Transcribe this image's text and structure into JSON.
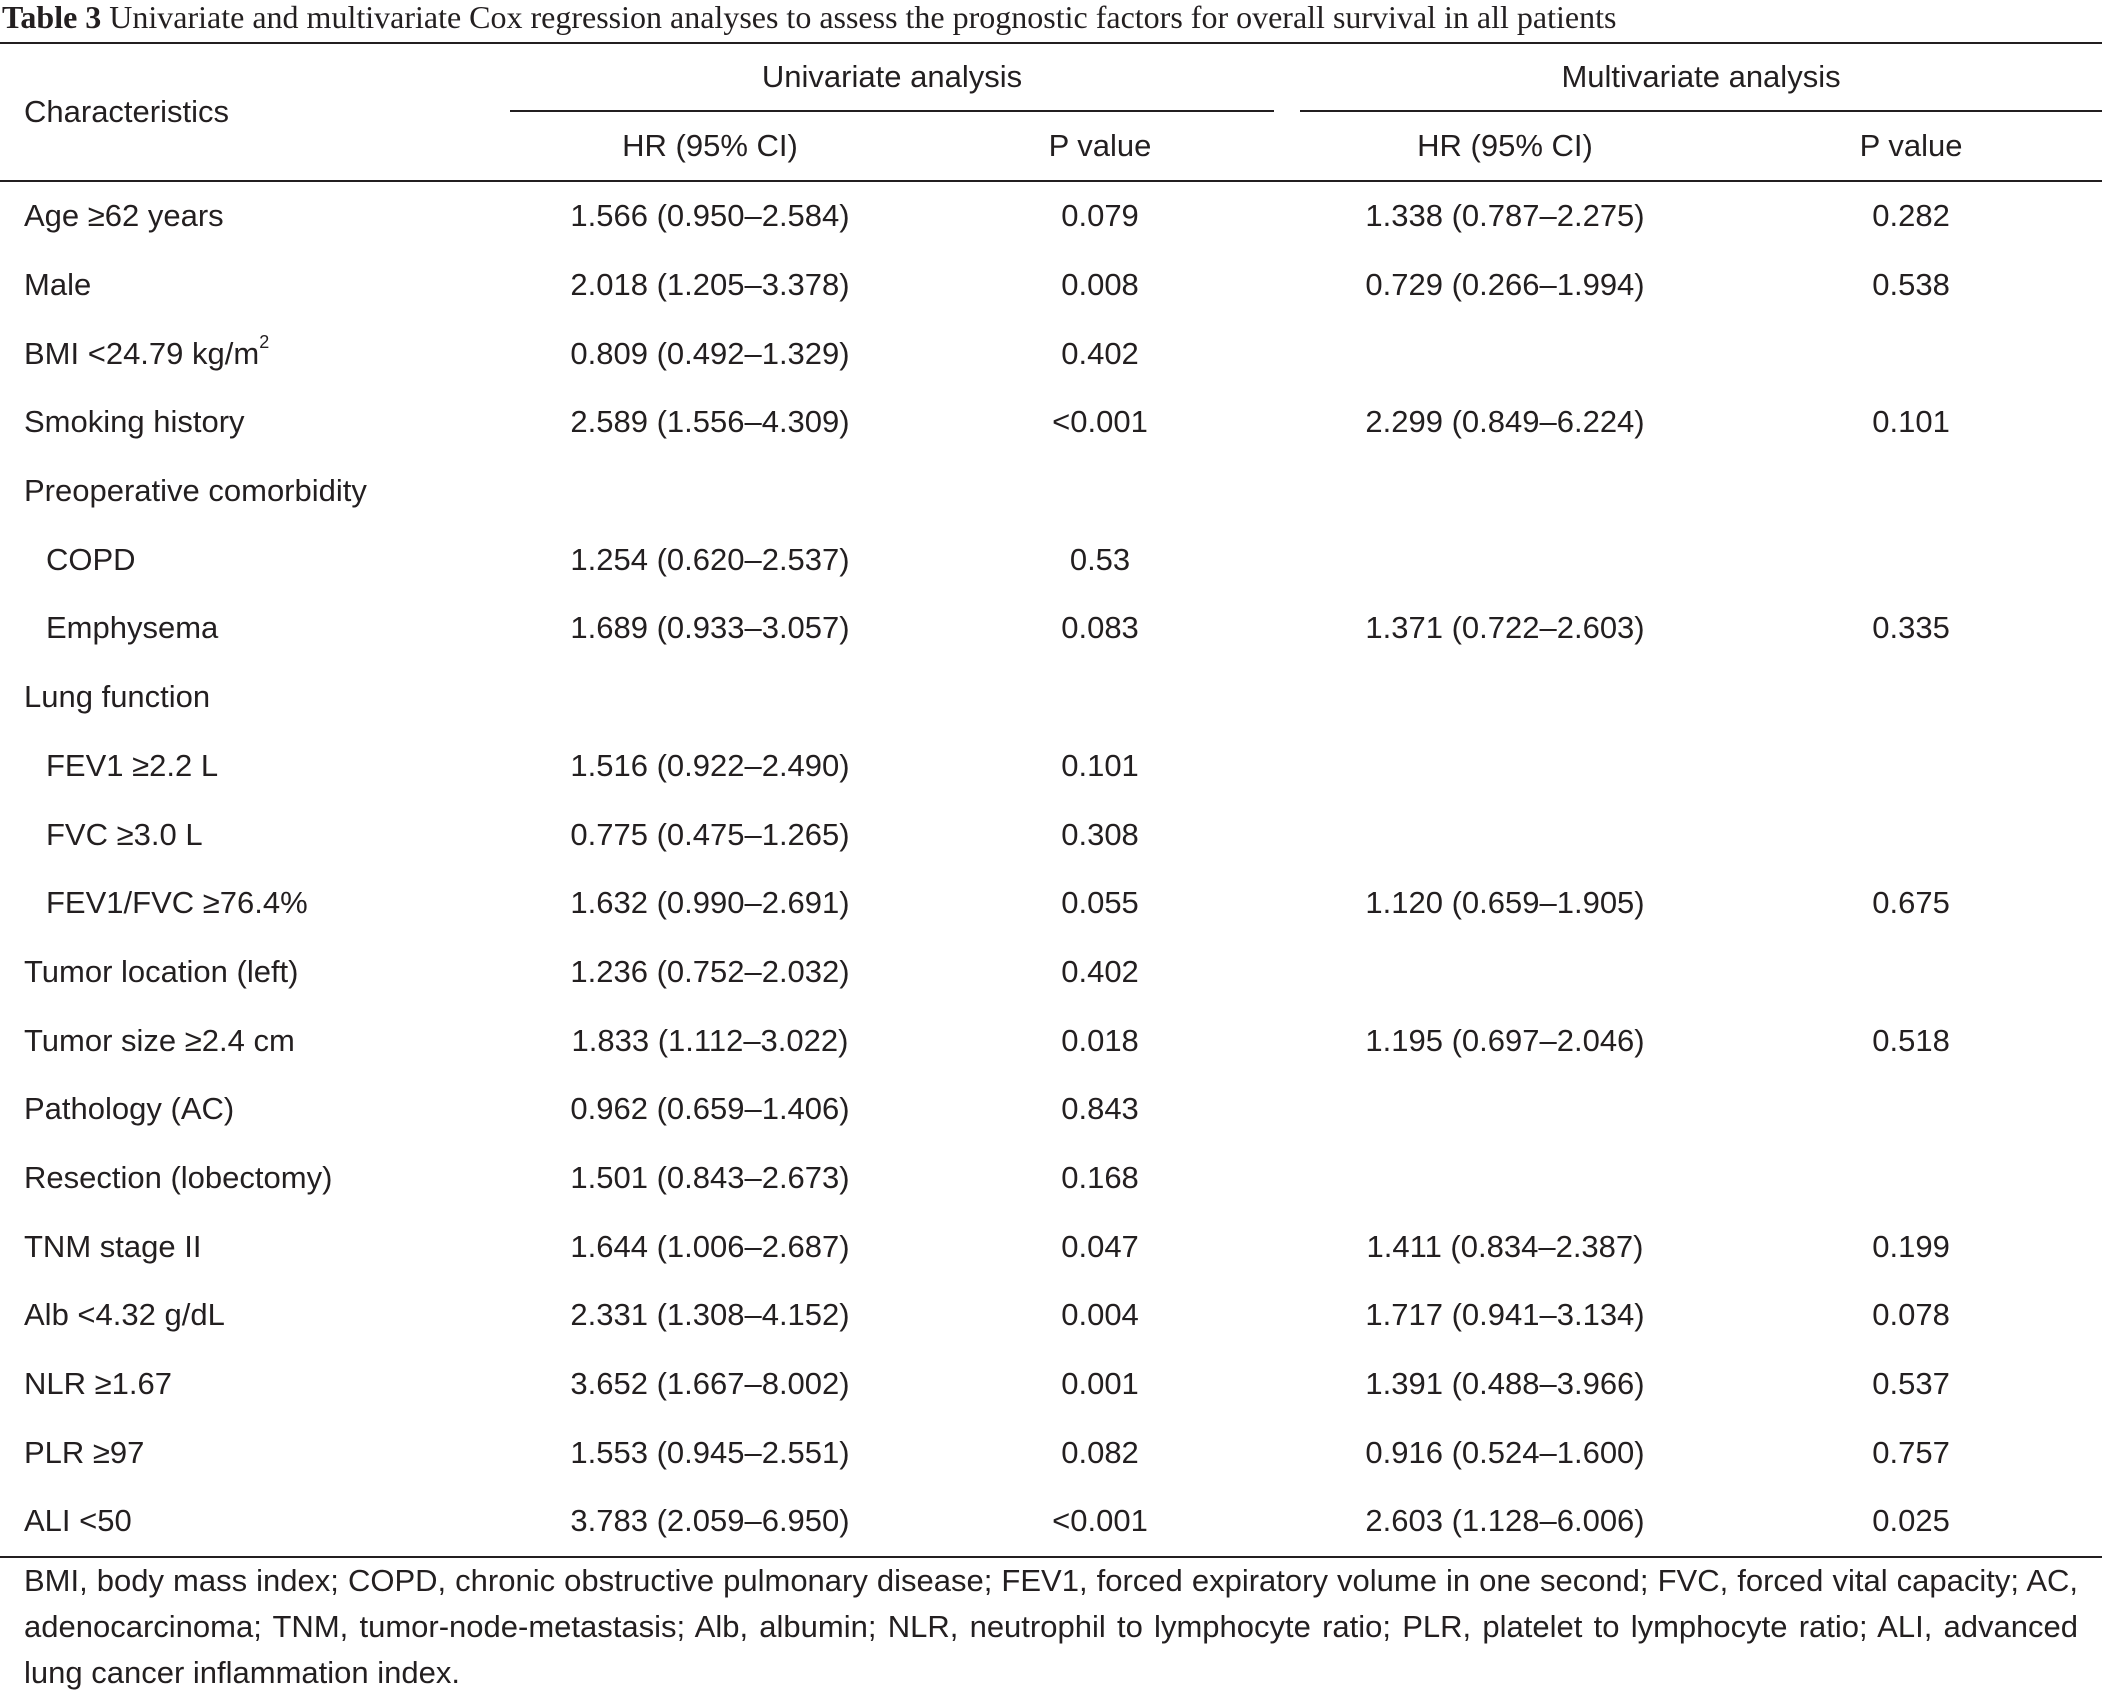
{
  "caption": {
    "label": "Table 3",
    "text": "Univariate and multivariate Cox regression analyses to assess the prognostic factors for overall survival in all patients"
  },
  "header": {
    "characteristics": "Characteristics",
    "univariate": "Univariate analysis",
    "multivariate": "Multivariate analysis",
    "hr_ci": "HR (95% CI)",
    "p_value": "P value"
  },
  "rows": [
    {
      "name": "Age ≥62 years",
      "indent": false,
      "uni_hr": "1.566 (0.950–2.584)",
      "uni_p": "0.079",
      "multi_hr": "1.338 (0.787–2.275)",
      "multi_p": "0.282"
    },
    {
      "name": "Male",
      "indent": false,
      "uni_hr": "2.018 (1.205–3.378)",
      "uni_p": "0.008",
      "multi_hr": "0.729 (0.266–1.994)",
      "multi_p": "0.538"
    },
    {
      "name": "BMI <24.79 kg/m",
      "sup": "2",
      "indent": false,
      "uni_hr": "0.809 (0.492–1.329)",
      "uni_p": "0.402",
      "multi_hr": "",
      "multi_p": ""
    },
    {
      "name": "Smoking history",
      "indent": false,
      "uni_hr": "2.589 (1.556–4.309)",
      "uni_p": "<0.001",
      "multi_hr": "2.299 (0.849–6.224)",
      "multi_p": "0.101"
    },
    {
      "name": "Preoperative comorbidity",
      "indent": false,
      "uni_hr": "",
      "uni_p": "",
      "multi_hr": "",
      "multi_p": ""
    },
    {
      "name": "COPD",
      "indent": true,
      "uni_hr": "1.254 (0.620–2.537)",
      "uni_p": "0.53",
      "multi_hr": "",
      "multi_p": ""
    },
    {
      "name": "Emphysema",
      "indent": true,
      "uni_hr": "1.689 (0.933–3.057)",
      "uni_p": "0.083",
      "multi_hr": "1.371 (0.722–2.603)",
      "multi_p": "0.335"
    },
    {
      "name": "Lung function",
      "indent": false,
      "uni_hr": "",
      "uni_p": "",
      "multi_hr": "",
      "multi_p": ""
    },
    {
      "name": "FEV1 ≥2.2 L",
      "indent": true,
      "uni_hr": "1.516 (0.922–2.490)",
      "uni_p": "0.101",
      "multi_hr": "",
      "multi_p": ""
    },
    {
      "name": "FVC ≥3.0 L",
      "indent": true,
      "uni_hr": "0.775 (0.475–1.265)",
      "uni_p": "0.308",
      "multi_hr": "",
      "multi_p": ""
    },
    {
      "name": "FEV1/FVC ≥76.4%",
      "indent": true,
      "uni_hr": "1.632 (0.990–2.691)",
      "uni_p": "0.055",
      "multi_hr": "1.120 (0.659–1.905)",
      "multi_p": "0.675"
    },
    {
      "name": "Tumor location (left)",
      "indent": false,
      "uni_hr": "1.236 (0.752–2.032)",
      "uni_p": "0.402",
      "multi_hr": "",
      "multi_p": ""
    },
    {
      "name": "Tumor size ≥2.4 cm",
      "indent": false,
      "uni_hr": "1.833 (1.112–3.022)",
      "uni_p": "0.018",
      "multi_hr": "1.195 (0.697–2.046)",
      "multi_p": "0.518"
    },
    {
      "name": "Pathology (AC)",
      "indent": false,
      "uni_hr": "0.962 (0.659–1.406)",
      "uni_p": "0.843",
      "multi_hr": "",
      "multi_p": ""
    },
    {
      "name": "Resection (lobectomy)",
      "indent": false,
      "uni_hr": "1.501 (0.843–2.673)",
      "uni_p": "0.168",
      "multi_hr": "",
      "multi_p": ""
    },
    {
      "name": "TNM stage II",
      "indent": false,
      "uni_hr": "1.644 (1.006–2.687)",
      "uni_p": "0.047",
      "multi_hr": "1.411 (0.834–2.387)",
      "multi_p": "0.199"
    },
    {
      "name": "Alb <4.32 g/dL",
      "indent": false,
      "uni_hr": "2.331 (1.308–4.152)",
      "uni_p": "0.004",
      "multi_hr": "1.717 (0.941–3.134)",
      "multi_p": "0.078"
    },
    {
      "name": "NLR ≥1.67",
      "indent": false,
      "uni_hr": "3.652 (1.667–8.002)",
      "uni_p": "0.001",
      "multi_hr": "1.391 (0.488–3.966)",
      "multi_p": "0.537"
    },
    {
      "name": "PLR ≥97",
      "indent": false,
      "uni_hr": "1.553 (0.945–2.551)",
      "uni_p": "0.082",
      "multi_hr": "0.916 (0.524–1.600)",
      "multi_p": "0.757"
    },
    {
      "name": "ALI <50",
      "indent": false,
      "uni_hr": "3.783 (2.059–6.950)",
      "uni_p": "<0.001",
      "multi_hr": "2.603 (1.128–6.006)",
      "multi_p": "0.025"
    }
  ],
  "footnote": "BMI, body mass index; COPD, chronic obstructive pulmonary disease; FEV1, forced expiratory volume in one second; FVC, forced vital capacity; AC, adenocarcinoma; TNM, tumor-node-metastasis; Alb, albumin; NLR, neutrophil to lymphocyte ratio; PLR, platelet to lymphocyte ratio; ALI, advanced lung cancer inflammation index."
}
